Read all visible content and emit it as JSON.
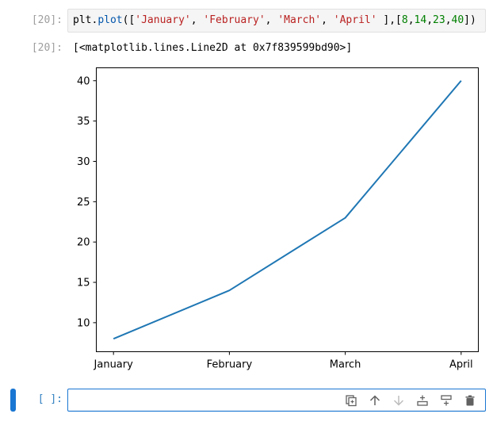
{
  "cells": {
    "in1": {
      "prompt": "[20]:"
    },
    "out1": {
      "prompt": "[20]:",
      "text": "[<matplotlib.lines.Line2D at 0x7f839599bd90>]"
    },
    "in2": {
      "prompt": "[ ]:"
    }
  },
  "code": {
    "tokens": {
      "t1": "plt",
      "t2": ".",
      "t3": "plot",
      "t4": "([",
      "t5": "'January'",
      "t6": ", ",
      "t7": "'February'",
      "t8": ", ",
      "t9": "'March'",
      "t10": ", ",
      "t11": "'April'",
      "t12": " ],[",
      "t13": "8",
      "t14": ",",
      "t15": "14",
      "t16": ",",
      "t17": "23",
      "t18": ",",
      "t19": "40",
      "t20": "])"
    }
  },
  "chart_data": {
    "type": "line",
    "categories": [
      "January",
      "February",
      "March",
      "April"
    ],
    "series": [
      {
        "values": [
          8,
          14,
          23,
          40
        ],
        "color": "#1f77b4"
      }
    ],
    "yticks": [
      10,
      15,
      20,
      25,
      30,
      35,
      40
    ],
    "ylim": [
      6.4,
      41.6
    ],
    "grid": false
  },
  "toolbar": {
    "icons": [
      "duplicate-icon",
      "move-up-icon",
      "move-down-icon",
      "insert-above-icon",
      "insert-below-icon",
      "delete-icon"
    ]
  }
}
